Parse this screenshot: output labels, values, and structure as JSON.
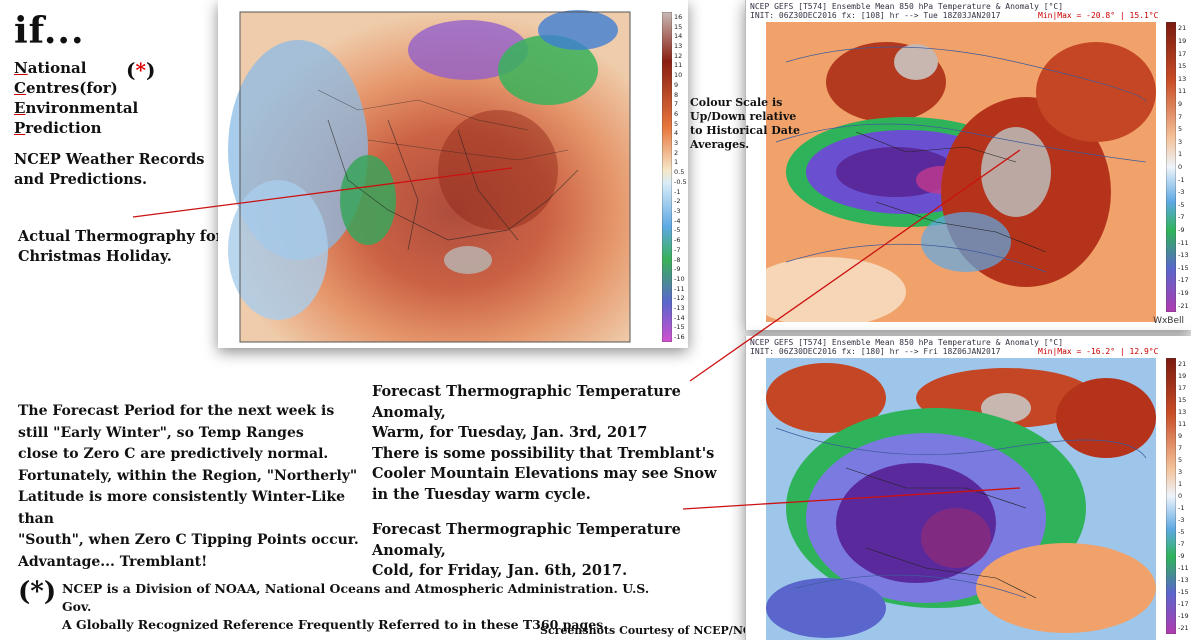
{
  "title": "if...",
  "acronym": [
    {
      "first": "N",
      "rest": "ational"
    },
    {
      "first": "C",
      "rest": "entres(for)"
    },
    {
      "first": "E",
      "rest": "nvironmental"
    },
    {
      "first": "P",
      "rest": "rediction"
    }
  ],
  "asterisk_mark": "*",
  "records_text": "NCEP Weather Records and Predictions.",
  "actual_caption": "Actual Thermography for Christmas Holiday.",
  "period_text": [
    "The Forecast Period for the next week is",
    "still \"Early Winter\", so Temp Ranges",
    "close to Zero C are predictively normal.",
    "Fortunately, within the Region, \"Northerly\"",
    "Latitude is more consistently Winter-Like than",
    "\"South\", when Zero C Tipping Points occur.",
    "Advantage... Tremblant!"
  ],
  "warm_caption": [
    "Forecast Thermographic Temperature Anomaly,",
    "Warm, for Tuesday, Jan. 3rd, 2017",
    "There is some possibility that Tremblant's",
    "Cooler Mountain Elevations may see Snow",
    "in the Tuesday warm cycle."
  ],
  "cold_caption": [
    "Forecast Thermographic Temperature Anomaly,",
    "Cold, for Friday, Jan. 6th, 2017."
  ],
  "scale_note": "Colour Scale is Up/Down relative to Historical Date Averages.",
  "note_star": "(*)",
  "noaa_text": [
    "NCEP is a Division of NOAA, National Oceans and Atmospheric Administration. U.S. Gov.",
    "A Globally Recognized Reference Frequently Referred to in these T360 pages."
  ],
  "courtesy": "Screenshots Courtesy of NCEP/NOAA",
  "panel_actual": {
    "scale_labels": [
      "16",
      "15",
      "14",
      "13",
      "12",
      "11",
      "10",
      "9",
      "8",
      "7",
      "6",
      "5",
      "4",
      "3",
      "2",
      "1",
      "0.5",
      "-0.5",
      "-1",
      "-2",
      "-3",
      "-4",
      "-5",
      "-6",
      "-7",
      "-8",
      "-9",
      "-10",
      "-11",
      "-12",
      "-13",
      "-14",
      "-15",
      "-16"
    ]
  },
  "panel_warm": {
    "header1": "NCEP GEFS [T574] Ensemble Mean 850 hPa Temperature & Anomaly [°C]",
    "header2": "INIT: 06Z30DEC2016 fx: [108] hr --> Tue 18Z03JAN2017",
    "minmax": "Min|Max = -20.8° | 15.1°C",
    "watermark": "WxBell",
    "scale_labels": [
      "21",
      "19",
      "17",
      "15",
      "13",
      "11",
      "9",
      "7",
      "5",
      "3",
      "1",
      "0",
      "-1",
      "-3",
      "-5",
      "-7",
      "-9",
      "-11",
      "-13",
      "-15",
      "-17",
      "-19",
      "-21"
    ]
  },
  "panel_cold": {
    "header1": "NCEP GEFS [T574] Ensemble Mean 850 hPa Temperature & Anomaly [°C]",
    "header2": "INIT: 06Z30DEC2016 fx: [180] hr --> Fri 18Z06JAN2017",
    "minmax": "Min|Max = -16.2° | 12.9°C",
    "scale_labels": [
      "21",
      "19",
      "17",
      "15",
      "13",
      "11",
      "9",
      "7",
      "5",
      "3",
      "1",
      "0",
      "-1",
      "-3",
      "-5",
      "-7",
      "-9",
      "-11",
      "-13",
      "-15",
      "-17",
      "-19",
      "-21"
    ]
  },
  "colors": {
    "arrow": "#cc1111",
    "warm_red": "#b5301a",
    "cold_purple": "#5a2a9c",
    "green": "#2fa84a",
    "blue": "#7fb4e0"
  }
}
